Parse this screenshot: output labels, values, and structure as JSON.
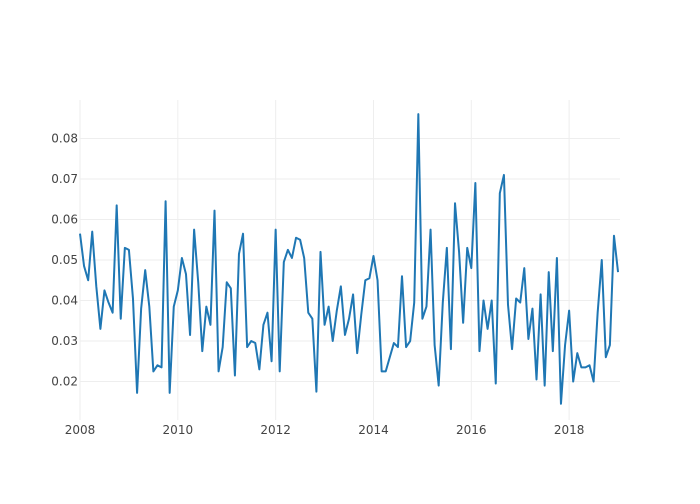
{
  "chart_data": {
    "type": "line",
    "title": "",
    "xlabel": "",
    "ylabel": "",
    "xlim": [
      2008.0,
      2019.04
    ],
    "ylim": [
      0.0105,
      0.0895
    ],
    "x_ticks": [
      {
        "value": 2008,
        "label": "2008"
      },
      {
        "value": 2010,
        "label": "2010"
      },
      {
        "value": 2012,
        "label": "2012"
      },
      {
        "value": 2014,
        "label": "2014"
      },
      {
        "value": 2016,
        "label": "2016"
      },
      {
        "value": 2018,
        "label": "2018"
      }
    ],
    "y_ticks": [
      {
        "value": 0.02,
        "label": "0.02"
      },
      {
        "value": 0.03,
        "label": "0.03"
      },
      {
        "value": 0.04,
        "label": "0.04"
      },
      {
        "value": 0.05,
        "label": "0.05"
      },
      {
        "value": 0.06,
        "label": "0.06"
      },
      {
        "value": 0.07,
        "label": "0.07"
      },
      {
        "value": 0.08,
        "label": "0.08"
      }
    ],
    "grid": true,
    "legend": "none",
    "colors": {
      "line": "#1f77b4",
      "grid": "#eeeeee",
      "tick_text": "#444444"
    },
    "series": [
      {
        "x": [
          2008.0,
          2008.083,
          2008.167,
          2008.25,
          2008.333,
          2008.417,
          2008.5,
          2008.583,
          2008.667,
          2008.75,
          2008.833,
          2008.917,
          2009.0,
          2009.083,
          2009.167,
          2009.25,
          2009.333,
          2009.417,
          2009.5,
          2009.583,
          2009.667,
          2009.75,
          2009.833,
          2009.917,
          2010.0,
          2010.083,
          2010.167,
          2010.25,
          2010.333,
          2010.417,
          2010.5,
          2010.583,
          2010.667,
          2010.75,
          2010.833,
          2010.917,
          2011.0,
          2011.083,
          2011.167,
          2011.25,
          2011.333,
          2011.417,
          2011.5,
          2011.583,
          2011.667,
          2011.75,
          2011.833,
          2011.917,
          2012.0,
          2012.083,
          2012.167,
          2012.25,
          2012.333,
          2012.417,
          2012.5,
          2012.583,
          2012.667,
          2012.75,
          2012.833,
          2012.917,
          2013.0,
          2013.083,
          2013.167,
          2013.25,
          2013.333,
          2013.417,
          2013.5,
          2013.583,
          2013.667,
          2013.75,
          2013.833,
          2013.917,
          2014.0,
          2014.083,
          2014.167,
          2014.25,
          2014.333,
          2014.417,
          2014.5,
          2014.583,
          2014.667,
          2014.75,
          2014.833,
          2014.917,
          2015.0,
          2015.083,
          2015.167,
          2015.25,
          2015.333,
          2015.417,
          2015.5,
          2015.583,
          2015.667,
          2015.75,
          2015.833,
          2015.917,
          2016.0,
          2016.083,
          2016.167,
          2016.25,
          2016.333,
          2016.417,
          2016.5,
          2016.583,
          2016.667,
          2016.75,
          2016.833,
          2016.917,
          2017.0,
          2017.083,
          2017.167,
          2017.25,
          2017.333,
          2017.417,
          2017.5,
          2017.583,
          2017.667,
          2017.75,
          2017.833,
          2017.917,
          2018.0,
          2018.083,
          2018.167,
          2018.25,
          2018.333,
          2018.417,
          2018.5,
          2018.583,
          2018.667,
          2018.75,
          2018.833,
          2018.917,
          2019.0
        ],
        "values": [
          0.0565,
          0.0485,
          0.045,
          0.057,
          0.0435,
          0.033,
          0.0425,
          0.0395,
          0.037,
          0.0635,
          0.0355,
          0.053,
          0.0525,
          0.0405,
          0.0172,
          0.038,
          0.0475,
          0.0385,
          0.0225,
          0.024,
          0.0235,
          0.0645,
          0.0172,
          0.0385,
          0.0425,
          0.0505,
          0.0465,
          0.0315,
          0.0575,
          0.0445,
          0.0275,
          0.0385,
          0.034,
          0.0622,
          0.0225,
          0.0285,
          0.0445,
          0.043,
          0.0215,
          0.0515,
          0.0565,
          0.0285,
          0.03,
          0.0295,
          0.023,
          0.034,
          0.037,
          0.025,
          0.0575,
          0.0225,
          0.0495,
          0.0525,
          0.0505,
          0.0555,
          0.055,
          0.0505,
          0.037,
          0.0355,
          0.0175,
          0.052,
          0.034,
          0.0385,
          0.03,
          0.0375,
          0.0435,
          0.0315,
          0.0355,
          0.0415,
          0.027,
          0.0365,
          0.045,
          0.0455,
          0.051,
          0.045,
          0.0225,
          0.0225,
          0.026,
          0.0295,
          0.0285,
          0.046,
          0.0285,
          0.03,
          0.0395,
          0.086,
          0.0355,
          0.0385,
          0.0575,
          0.029,
          0.019,
          0.0395,
          0.053,
          0.028,
          0.064,
          0.052,
          0.0345,
          0.053,
          0.048,
          0.069,
          0.0275,
          0.04,
          0.033,
          0.04,
          0.0195,
          0.0665,
          0.071,
          0.039,
          0.028,
          0.0405,
          0.0395,
          0.048,
          0.0305,
          0.038,
          0.0205,
          0.0415,
          0.019,
          0.047,
          0.0275,
          0.0505,
          0.0145,
          0.029,
          0.0375,
          0.02,
          0.027,
          0.0235,
          0.0235,
          0.024,
          0.02,
          0.037,
          0.05,
          0.026,
          0.029,
          0.056,
          0.047
        ]
      }
    ]
  }
}
